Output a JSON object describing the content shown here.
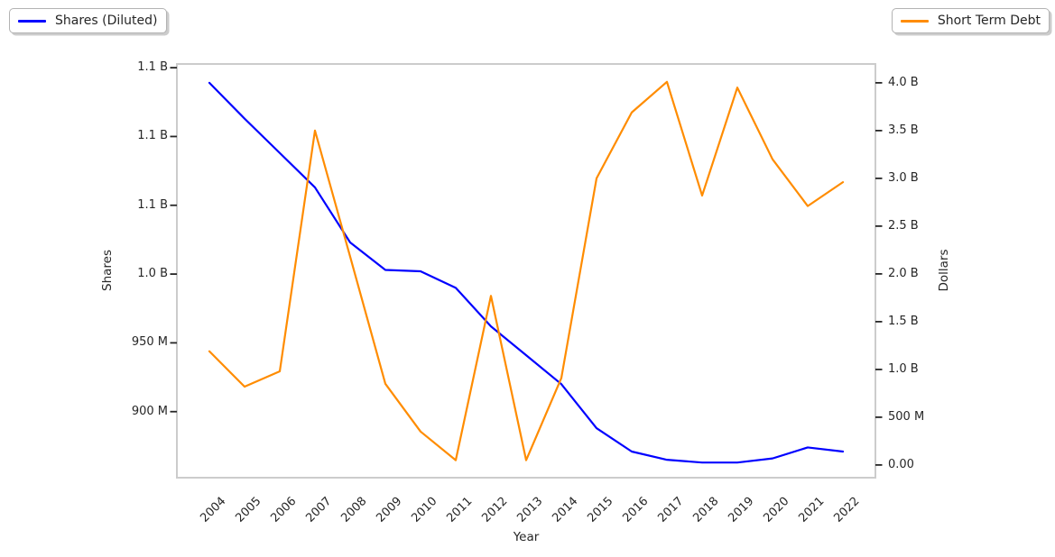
{
  "chart_data": {
    "type": "line",
    "title": "",
    "grid": false,
    "x_axis": {
      "label": "Year",
      "tick_labels": [
        "2004",
        "2005",
        "2006",
        "2007",
        "2008",
        "2009",
        "2010",
        "2011",
        "2012",
        "2013",
        "2014",
        "2015",
        "2016",
        "2017",
        "2018",
        "2019",
        "2020",
        "2021",
        "2022"
      ]
    },
    "left_axis": {
      "label": "Shares",
      "units": "shares (values in millions)",
      "ticks_millions": [
        900,
        950,
        1000,
        1050,
        1100,
        1150
      ],
      "tick_labels": [
        "900 M",
        "950 M",
        "1.0 B",
        "1.1 B",
        "1.1 B",
        "1.1 B"
      ],
      "range_millions": [
        852,
        1152.7
      ]
    },
    "right_axis": {
      "label": "Dollars",
      "units": "dollars (values in billions)",
      "ticks_billions": [
        0,
        0.5,
        1.0,
        1.5,
        2.0,
        2.5,
        3.0,
        3.5,
        4.0
      ],
      "tick_labels": [
        "0.00",
        "500 M",
        "1.0 B",
        "1.5 B",
        "2.0 B",
        "2.5 B",
        "3.0 B",
        "3.5 B",
        "4.0 B"
      ],
      "range_billions": [
        -0.133,
        4.197
      ]
    },
    "series": [
      {
        "name": "Shares (Diluted)",
        "axis": "left",
        "color": "#0000ff",
        "legend_position": "upper left",
        "values": [
          1139,
          1113,
          1088,
          1063,
          1023,
          1003,
          1002,
          990,
          962,
          941,
          920,
          888,
          871,
          865,
          863,
          863,
          866,
          874,
          871
        ]
      },
      {
        "name": "Short Term Debt",
        "axis": "right",
        "color": "#ff8c00",
        "legend_position": "upper right",
        "values": [
          1.19,
          0.82,
          0.98,
          3.5,
          2.18,
          0.85,
          0.35,
          0.05,
          1.77,
          0.05,
          0.91,
          3.0,
          3.69,
          4.01,
          2.82,
          3.95,
          3.2,
          2.71,
          2.96
        ]
      }
    ]
  }
}
